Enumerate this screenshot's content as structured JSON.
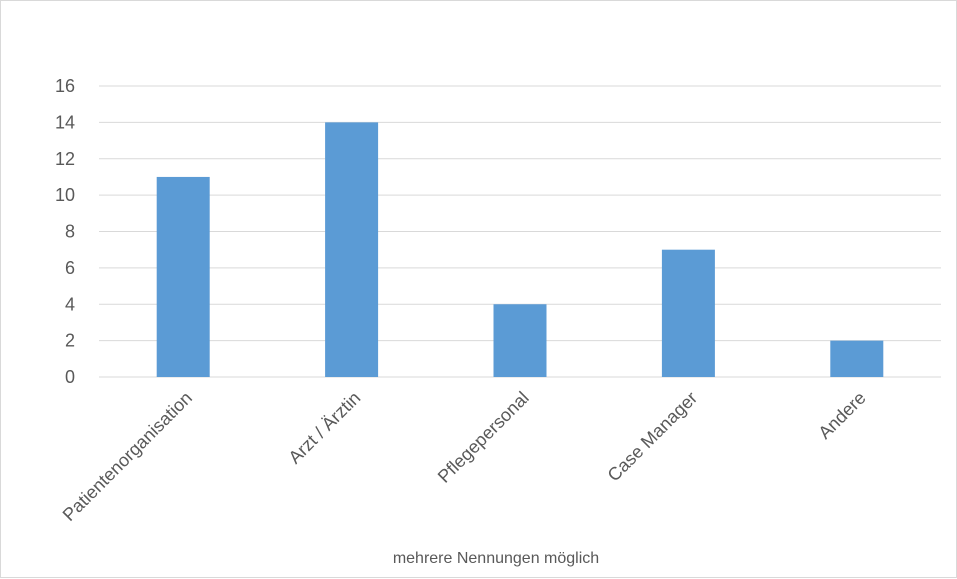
{
  "chart_data": {
    "type": "bar",
    "title": "",
    "xlabel": "mehrere Nennungen möglich",
    "ylabel": "",
    "categories": [
      "Patientenorganisation",
      "Arzt / Ärztin",
      "Pflegepersonal",
      "Case Manager",
      "Andere"
    ],
    "values": [
      11,
      14,
      4,
      7,
      2
    ],
    "ylim": [
      0,
      16
    ],
    "yticks": [
      "0",
      "2",
      "4",
      "6",
      "8",
      "10",
      "12",
      "14",
      "16"
    ],
    "grid": true,
    "legend": "none",
    "bar_color": "#5b9bd5",
    "grid_color": "#d9d9d9"
  }
}
